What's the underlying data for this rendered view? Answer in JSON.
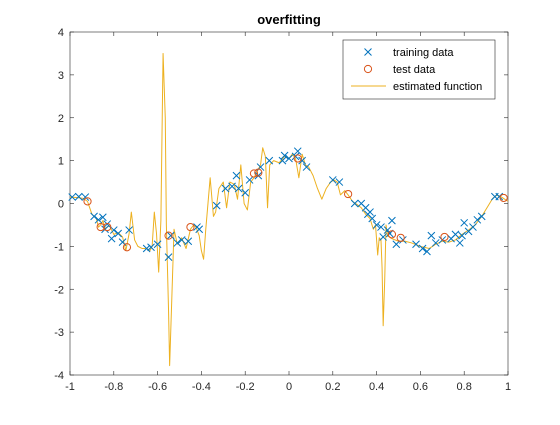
{
  "colors": {
    "training": "#0072BD",
    "test": "#D95319",
    "estimate": "#EDB120",
    "axis": "#262626"
  },
  "chart_data": {
    "type": "scatter",
    "title": "overfitting",
    "xlabel": "",
    "ylabel": "",
    "xlim": [
      -1,
      1
    ],
    "ylim": [
      -4,
      4
    ],
    "xticks": [
      -1,
      -0.8,
      -0.6,
      -0.4,
      -0.2,
      0,
      0.2,
      0.4,
      0.6,
      0.8,
      1
    ],
    "yticks": [
      -4,
      -3,
      -2,
      -1,
      0,
      1,
      2,
      3,
      4
    ],
    "xtick_labels": [
      "-1",
      "-0.8",
      "-0.6",
      "-0.4",
      "-0.2",
      "0",
      "0.2",
      "0.4",
      "0.6",
      "0.8",
      "1"
    ],
    "ytick_labels": [
      "-4",
      "-3",
      "-2",
      "-1",
      "0",
      "1",
      "2",
      "3",
      "4"
    ],
    "grid": false,
    "legend_position": "top-right",
    "series": [
      {
        "name": "training data",
        "marker": "x",
        "points": [
          [
            -0.99,
            0.15
          ],
          [
            -0.96,
            0.16
          ],
          [
            -0.93,
            0.15
          ],
          [
            -0.89,
            -0.3
          ],
          [
            -0.87,
            -0.38
          ],
          [
            -0.85,
            -0.32
          ],
          [
            -0.84,
            -0.6
          ],
          [
            -0.83,
            -0.48
          ],
          [
            -0.81,
            -0.82
          ],
          [
            -0.8,
            -0.62
          ],
          [
            -0.78,
            -0.7
          ],
          [
            -0.76,
            -0.9
          ],
          [
            -0.73,
            -0.62
          ],
          [
            -0.65,
            -1.05
          ],
          [
            -0.63,
            -1.02
          ],
          [
            -0.6,
            -0.95
          ],
          [
            -0.55,
            -1.25
          ],
          [
            -0.54,
            -0.75
          ],
          [
            -0.51,
            -0.92
          ],
          [
            -0.49,
            -0.85
          ],
          [
            -0.46,
            -0.88
          ],
          [
            -0.42,
            -0.55
          ],
          [
            -0.41,
            -0.6
          ],
          [
            -0.33,
            -0.05
          ],
          [
            -0.29,
            0.35
          ],
          [
            -0.26,
            0.4
          ],
          [
            -0.24,
            0.65
          ],
          [
            -0.23,
            0.35
          ],
          [
            -0.2,
            0.25
          ],
          [
            -0.18,
            0.55
          ],
          [
            -0.14,
            0.65
          ],
          [
            -0.13,
            0.85
          ],
          [
            -0.09,
            1.0
          ],
          [
            -0.03,
            1.0
          ],
          [
            -0.02,
            1.12
          ],
          [
            0.0,
            1.05
          ],
          [
            0.03,
            1.1
          ],
          [
            0.04,
            1.22
          ],
          [
            0.06,
            1.0
          ],
          [
            0.08,
            0.85
          ],
          [
            0.2,
            0.55
          ],
          [
            0.23,
            0.5
          ],
          [
            0.3,
            0.0
          ],
          [
            0.33,
            0.0
          ],
          [
            0.35,
            -0.1
          ],
          [
            0.36,
            -0.25
          ],
          [
            0.37,
            -0.2
          ],
          [
            0.38,
            -0.35
          ],
          [
            0.4,
            -0.5
          ],
          [
            0.42,
            -0.55
          ],
          [
            0.43,
            -0.78
          ],
          [
            0.45,
            -0.62
          ],
          [
            0.46,
            -0.7
          ],
          [
            0.47,
            -0.4
          ],
          [
            0.49,
            -0.95
          ],
          [
            0.52,
            -0.85
          ],
          [
            0.58,
            -0.95
          ],
          [
            0.61,
            -1.05
          ],
          [
            0.63,
            -1.12
          ],
          [
            0.65,
            -0.75
          ],
          [
            0.67,
            -0.92
          ],
          [
            0.7,
            -0.85
          ],
          [
            0.74,
            -0.82
          ],
          [
            0.76,
            -0.72
          ],
          [
            0.78,
            -0.92
          ],
          [
            0.79,
            -0.75
          ],
          [
            0.8,
            -0.45
          ],
          [
            0.82,
            -0.65
          ],
          [
            0.84,
            -0.55
          ],
          [
            0.86,
            -0.38
          ],
          [
            0.88,
            -0.3
          ],
          [
            0.94,
            0.16
          ],
          [
            0.96,
            0.16
          ]
        ]
      },
      {
        "name": "test data",
        "marker": "o",
        "points": [
          [
            -0.92,
            0.05
          ],
          [
            -0.86,
            -0.55
          ],
          [
            -0.83,
            -0.55
          ],
          [
            -0.74,
            -1.02
          ],
          [
            -0.55,
            -0.75
          ],
          [
            -0.45,
            -0.55
          ],
          [
            -0.16,
            0.7
          ],
          [
            -0.14,
            0.72
          ],
          [
            0.04,
            1.05
          ],
          [
            0.27,
            0.22
          ],
          [
            0.47,
            -0.72
          ],
          [
            0.51,
            -0.8
          ],
          [
            0.71,
            -0.78
          ],
          [
            0.98,
            0.13
          ]
        ]
      },
      {
        "name": "estimated function",
        "marker": "line",
        "points": [
          [
            -1.0,
            0.15
          ],
          [
            -0.97,
            0.14
          ],
          [
            -0.94,
            0.12
          ],
          [
            -0.92,
            0.05
          ],
          [
            -0.9,
            -0.25
          ],
          [
            -0.88,
            -0.35
          ],
          [
            -0.87,
            -0.55
          ],
          [
            -0.86,
            -0.5
          ],
          [
            -0.85,
            -0.4
          ],
          [
            -0.84,
            -0.58
          ],
          [
            -0.82,
            -0.52
          ],
          [
            -0.8,
            -0.72
          ],
          [
            -0.78,
            -0.68
          ],
          [
            -0.76,
            -0.78
          ],
          [
            -0.745,
            -1.1
          ],
          [
            -0.73,
            -0.7
          ],
          [
            -0.72,
            -0.2
          ],
          [
            -0.705,
            -0.85
          ],
          [
            -0.69,
            -1.0
          ],
          [
            -0.67,
            -1.05
          ],
          [
            -0.65,
            -1.05
          ],
          [
            -0.635,
            -1.1
          ],
          [
            -0.625,
            -1.0
          ],
          [
            -0.615,
            -0.2
          ],
          [
            -0.605,
            -0.7
          ],
          [
            -0.595,
            -1.6
          ],
          [
            -0.585,
            -0.4
          ],
          [
            -0.575,
            3.5
          ],
          [
            -0.565,
            2.0
          ],
          [
            -0.56,
            -0.5
          ],
          [
            -0.55,
            -2.5
          ],
          [
            -0.545,
            -3.78
          ],
          [
            -0.535,
            -2.2
          ],
          [
            -0.525,
            -0.6
          ],
          [
            -0.51,
            -0.95
          ],
          [
            -0.49,
            -0.8
          ],
          [
            -0.47,
            -1.05
          ],
          [
            -0.45,
            -0.6
          ],
          [
            -0.435,
            -0.5
          ],
          [
            -0.425,
            -0.55
          ],
          [
            -0.41,
            -0.75
          ],
          [
            -0.4,
            -1.1
          ],
          [
            -0.39,
            -1.3
          ],
          [
            -0.38,
            -0.6
          ],
          [
            -0.36,
            0.6
          ],
          [
            -0.345,
            -0.3
          ],
          [
            -0.335,
            -0.2
          ],
          [
            -0.32,
            0.35
          ],
          [
            -0.3,
            0.5
          ],
          [
            -0.285,
            -0.1
          ],
          [
            -0.27,
            0.5
          ],
          [
            -0.25,
            0.45
          ],
          [
            -0.235,
            0.1
          ],
          [
            -0.22,
            0.9
          ],
          [
            -0.205,
            0.0
          ],
          [
            -0.19,
            -0.15
          ],
          [
            -0.175,
            0.5
          ],
          [
            -0.16,
            0.6
          ],
          [
            -0.145,
            0.75
          ],
          [
            -0.13,
            0.9
          ],
          [
            -0.12,
            1.3
          ],
          [
            -0.108,
            1.1
          ],
          [
            -0.098,
            -0.1
          ],
          [
            -0.088,
            0.9
          ],
          [
            -0.07,
            1.0
          ],
          [
            -0.045,
            0.95
          ],
          [
            -0.02,
            1.1
          ],
          [
            0.0,
            1.05
          ],
          [
            0.015,
            1.15
          ],
          [
            0.03,
            1.05
          ],
          [
            0.045,
            0.6
          ],
          [
            0.06,
            1.15
          ],
          [
            0.075,
            0.9
          ],
          [
            0.09,
            0.85
          ],
          [
            0.11,
            0.65
          ],
          [
            0.13,
            0.35
          ],
          [
            0.15,
            0.1
          ],
          [
            0.17,
            0.35
          ],
          [
            0.19,
            0.5
          ],
          [
            0.205,
            0.55
          ],
          [
            0.22,
            0.5
          ],
          [
            0.235,
            0.2
          ],
          [
            0.255,
            0.3
          ],
          [
            0.27,
            0.2
          ],
          [
            0.29,
            0.05
          ],
          [
            0.31,
            -0.02
          ],
          [
            0.33,
            -0.1
          ],
          [
            0.35,
            -0.25
          ],
          [
            0.37,
            -0.35
          ],
          [
            0.385,
            -0.6
          ],
          [
            0.395,
            -0.5
          ],
          [
            0.405,
            -1.2
          ],
          [
            0.412,
            -0.8
          ],
          [
            0.42,
            -0.85
          ],
          [
            0.425,
            -1.5
          ],
          [
            0.43,
            -2.85
          ],
          [
            0.437,
            -1.8
          ],
          [
            0.443,
            -0.5
          ],
          [
            0.45,
            -0.75
          ],
          [
            0.47,
            -0.82
          ],
          [
            0.5,
            -0.88
          ],
          [
            0.53,
            -0.88
          ],
          [
            0.56,
            -0.92
          ],
          [
            0.6,
            -1.0
          ],
          [
            0.64,
            -1.05
          ],
          [
            0.67,
            -0.95
          ],
          [
            0.7,
            -0.88
          ],
          [
            0.73,
            -0.9
          ],
          [
            0.76,
            -0.85
          ],
          [
            0.79,
            -0.72
          ],
          [
            0.82,
            -0.62
          ],
          [
            0.85,
            -0.5
          ],
          [
            0.88,
            -0.3
          ],
          [
            0.91,
            -0.05
          ],
          [
            0.93,
            0.12
          ],
          [
            0.95,
            0.2
          ],
          [
            0.97,
            0.15
          ],
          [
            1.0,
            0.05
          ]
        ]
      }
    ]
  }
}
